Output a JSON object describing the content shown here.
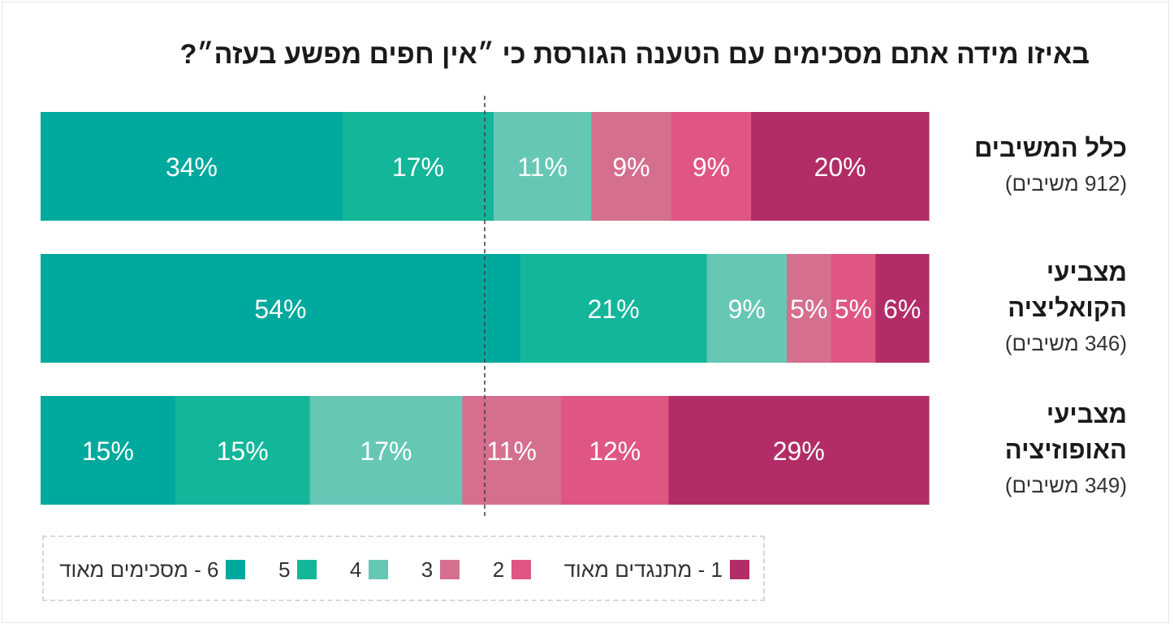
{
  "chart_data": {
    "type": "bar",
    "orientation": "horizontal-stacked",
    "title": "באיזו מידה אתם מסכימים עם הטענה הגורסת כי ״אין חפים מפשע בעזה״?",
    "categories": [
      {
        "name": "כלל המשיבים",
        "sub": "(912 משיבים)"
      },
      {
        "name": "מצביעי הקואליציה",
        "sub": "(346 משיבים)"
      },
      {
        "name": "מצביעי האופוזיציה",
        "sub": "(349 משיבים)"
      }
    ],
    "series": [
      {
        "name": "6 - מסכימים מאוד",
        "color": "#00a99d",
        "values": [
          34,
          54,
          15
        ]
      },
      {
        "name": "5",
        "color": "#14b69a",
        "values": [
          17,
          21,
          15
        ]
      },
      {
        "name": "4",
        "color": "#66c7b5",
        "values": [
          11,
          9,
          17
        ]
      },
      {
        "name": "3",
        "color": "#d4708e",
        "values": [
          9,
          5,
          11
        ]
      },
      {
        "name": "2",
        "color": "#df5682",
        "values": [
          9,
          5,
          12
        ]
      },
      {
        "name": "1 - מתנגדים מאוד",
        "color": "#b22d67",
        "values": [
          20,
          6,
          29
        ]
      }
    ],
    "value_suffix": "%",
    "reference_line": 50,
    "xlim": [
      0,
      100
    ],
    "legend_position": "bottom"
  }
}
